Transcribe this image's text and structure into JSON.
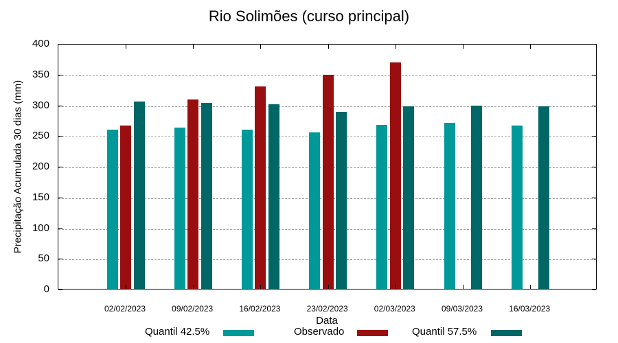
{
  "chart_data": {
    "type": "bar",
    "title": "Rio Solimões (curso principal)",
    "xlabel": "Data",
    "ylabel": "Precipitação Acumulada 30 dias (mm)",
    "ylim": [
      0,
      400
    ],
    "yticks": [
      0,
      50,
      100,
      150,
      200,
      250,
      300,
      350,
      400
    ],
    "grid": true,
    "legend_position": "bottom",
    "categories": [
      "02/02/2023",
      "09/02/2023",
      "16/02/2023",
      "23/02/2023",
      "02/03/2023",
      "09/03/2023",
      "16/03/2023"
    ],
    "series": [
      {
        "name": "Quantil 42.5%",
        "color": "#009999",
        "values": [
          259,
          263,
          259,
          255,
          267,
          270,
          266
        ]
      },
      {
        "name": "Observado",
        "color": "#990f0f",
        "values": [
          266,
          308,
          330,
          349,
          369,
          null,
          null
        ]
      },
      {
        "name": "Quantil 57.5%",
        "color": "#006666",
        "values": [
          305,
          303,
          301,
          288,
          297,
          298,
          297
        ]
      }
    ]
  },
  "labels": {
    "title": "Rio Solimões (curso principal)",
    "xlabel": "Data",
    "ylabel": "Precipitação Acumulada 30 dias (mm)",
    "yticks": [
      "0",
      "50",
      "100",
      "150",
      "200",
      "250",
      "300",
      "350",
      "400"
    ],
    "xticks": [
      "02/02/2023",
      "09/02/2023",
      "16/02/2023",
      "23/02/2023",
      "02/03/2023",
      "09/03/2023",
      "16/03/2023"
    ],
    "legend": [
      "Quantil 42.5%",
      "Observado",
      "Quantil 57.5%"
    ]
  }
}
